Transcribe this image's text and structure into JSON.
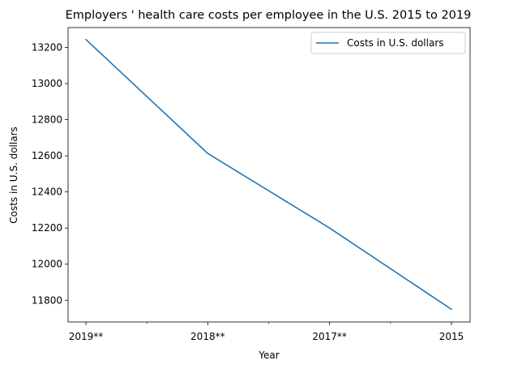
{
  "chart_data": {
    "type": "line",
    "title": "Employers ' health care costs per employee in the U.S. 2015 to 2019",
    "xlabel": "Year",
    "ylabel": "Costs in U.S. dollars",
    "categories": [
      "2019**",
      "2018**",
      "2017**",
      "2015"
    ],
    "series": [
      {
        "name": "Costs in U.S. dollars",
        "values": [
          13244,
          12613,
          12200,
          11750
        ],
        "color": "#1f77b4"
      }
    ],
    "ylim": [
      11680,
      13310
    ],
    "yticks": [
      11800,
      12000,
      12200,
      12400,
      12600,
      12800,
      13000,
      13200
    ],
    "grid": false,
    "legend_position": "top-right"
  }
}
